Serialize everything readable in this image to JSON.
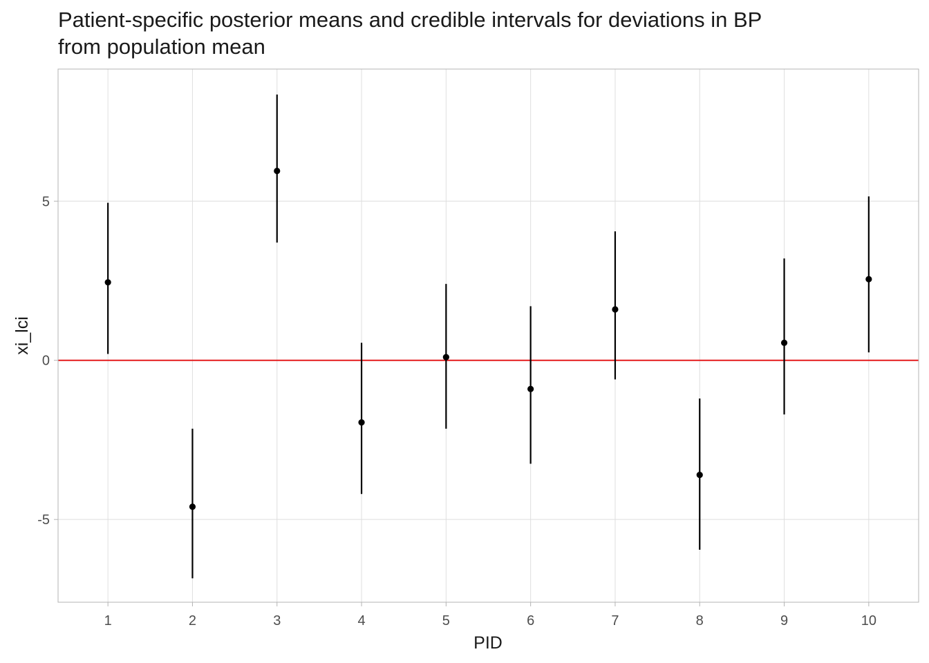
{
  "chart_data": {
    "type": "scatter",
    "title_line1": "Patient-specific posterior means and credible intervals for deviations in BP",
    "title_line2": "from population mean",
    "xlabel": "PID",
    "ylabel": "xi_lci",
    "x": [
      1,
      2,
      3,
      4,
      5,
      6,
      7,
      8,
      9,
      10
    ],
    "x_tick_labels": [
      "1",
      "2",
      "3",
      "4",
      "5",
      "6",
      "7",
      "8",
      "9",
      "10"
    ],
    "y_tick_labels": [
      "-5",
      "0",
      "5"
    ],
    "y_ticks": [
      -5,
      0,
      5
    ],
    "series": [
      {
        "points": [
          {
            "x": 1,
            "mean": 2.45,
            "lower": 0.2,
            "upper": 4.95
          },
          {
            "x": 2,
            "mean": -4.6,
            "lower": -6.85,
            "upper": -2.15
          },
          {
            "x": 3,
            "mean": 5.95,
            "lower": 3.7,
            "upper": 8.35
          },
          {
            "x": 4,
            "mean": -1.95,
            "lower": -4.2,
            "upper": 0.55
          },
          {
            "x": 5,
            "mean": 0.1,
            "lower": -2.15,
            "upper": 2.4
          },
          {
            "x": 6,
            "mean": -0.9,
            "lower": -3.25,
            "upper": 1.7
          },
          {
            "x": 7,
            "mean": 1.6,
            "lower": -0.6,
            "upper": 4.05
          },
          {
            "x": 8,
            "mean": -3.6,
            "lower": -5.95,
            "upper": -1.2
          },
          {
            "x": 9,
            "mean": 0.55,
            "lower": -1.7,
            "upper": 3.2
          },
          {
            "x": 10,
            "mean": 2.55,
            "lower": 0.25,
            "upper": 5.15
          }
        ]
      }
    ],
    "reference_line": {
      "y": 0,
      "color": "#e41a1c"
    },
    "xlim": [
      0.41,
      10.59
    ],
    "ylim": [
      -7.6,
      9.15
    ],
    "grid": true,
    "point_color": "#000000",
    "interval_color": "#000000",
    "grid_color": "#dedede",
    "panel_border_color": "#b3b3b3"
  }
}
